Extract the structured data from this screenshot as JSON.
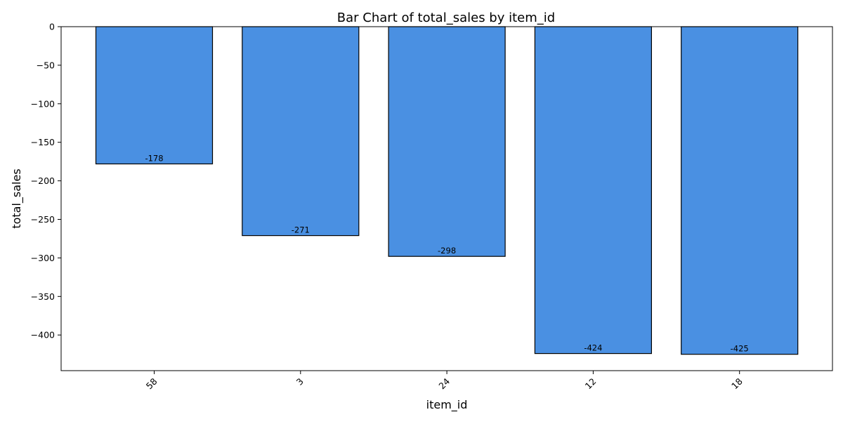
{
  "chart_data": {
    "type": "bar",
    "title": "Bar Chart of total_sales by item_id",
    "xlabel": "item_id",
    "ylabel": "total_sales",
    "categories": [
      "58",
      "3",
      "24",
      "12",
      "18"
    ],
    "values": [
      -178,
      -271,
      -298,
      -424,
      -425
    ],
    "data_labels": [
      "-178",
      "-271",
      "-298",
      "-424",
      "-425"
    ],
    "ylim": [
      -446.25,
      0
    ],
    "yticks": [
      0,
      -50,
      -100,
      -150,
      -200,
      -250,
      -300,
      -350,
      -400
    ],
    "ytick_labels": [
      "0",
      "−50",
      "−100",
      "−150",
      "−200",
      "−250",
      "−300",
      "−350",
      "−400"
    ],
    "xtick_rotation": "45",
    "grid": false,
    "legend": "none",
    "colors": {
      "bar_fill": "#4a90e2",
      "bar_edge": "#000000"
    }
  }
}
